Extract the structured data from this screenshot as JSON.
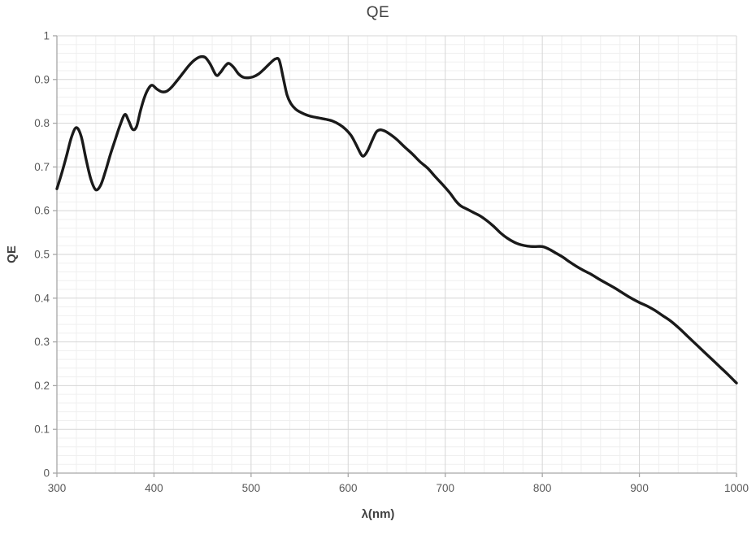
{
  "chart_data": {
    "type": "line",
    "title": "QE",
    "xlabel": "λ(nm)",
    "ylabel": "QE",
    "xlim": [
      300,
      1000
    ],
    "ylim": [
      0,
      1
    ],
    "x_major_step": 100,
    "x_minor_step": 20,
    "y_major_step": 0.1,
    "y_minor_step": 0.02,
    "grid": "major+minor",
    "legend_position": "none",
    "x_ticks": [
      {
        "value": 300,
        "label": "300"
      },
      {
        "value": 400,
        "label": "400"
      },
      {
        "value": 500,
        "label": "500"
      },
      {
        "value": 600,
        "label": "600"
      },
      {
        "value": 700,
        "label": "700"
      },
      {
        "value": 800,
        "label": "800"
      },
      {
        "value": 900,
        "label": "900"
      },
      {
        "value": 1000,
        "label": "1000"
      }
    ],
    "y_ticks": [
      {
        "value": 0,
        "label": "0"
      },
      {
        "value": 0.1,
        "label": "0.1"
      },
      {
        "value": 0.2,
        "label": "0.2"
      },
      {
        "value": 0.3,
        "label": "0.3"
      },
      {
        "value": 0.4,
        "label": "0.4"
      },
      {
        "value": 0.5,
        "label": "0.5"
      },
      {
        "value": 0.6,
        "label": "0.6"
      },
      {
        "value": 0.7,
        "label": "0.7"
      },
      {
        "value": 0.8,
        "label": "0.8"
      },
      {
        "value": 0.9,
        "label": "0.9"
      },
      {
        "value": 1,
        "label": "1"
      }
    ],
    "series": [
      {
        "name": "QE",
        "points": [
          [
            300,
            0.65
          ],
          [
            305,
            0.686
          ],
          [
            310,
            0.726
          ],
          [
            315,
            0.768
          ],
          [
            320,
            0.79
          ],
          [
            325,
            0.77
          ],
          [
            330,
            0.718
          ],
          [
            335,
            0.672
          ],
          [
            340,
            0.648
          ],
          [
            345,
            0.658
          ],
          [
            350,
            0.69
          ],
          [
            355,
            0.728
          ],
          [
            360,
            0.762
          ],
          [
            365,
            0.795
          ],
          [
            370,
            0.82
          ],
          [
            374,
            0.805
          ],
          [
            378,
            0.786
          ],
          [
            382,
            0.792
          ],
          [
            386,
            0.828
          ],
          [
            390,
            0.858
          ],
          [
            394,
            0.878
          ],
          [
            398,
            0.887
          ],
          [
            403,
            0.878
          ],
          [
            408,
            0.872
          ],
          [
            413,
            0.873
          ],
          [
            418,
            0.882
          ],
          [
            424,
            0.898
          ],
          [
            430,
            0.915
          ],
          [
            436,
            0.932
          ],
          [
            442,
            0.945
          ],
          [
            448,
            0.952
          ],
          [
            453,
            0.95
          ],
          [
            458,
            0.935
          ],
          [
            464,
            0.91
          ],
          [
            468,
            0.915
          ],
          [
            473,
            0.93
          ],
          [
            477,
            0.937
          ],
          [
            482,
            0.928
          ],
          [
            487,
            0.913
          ],
          [
            492,
            0.905
          ],
          [
            497,
            0.904
          ],
          [
            502,
            0.906
          ],
          [
            508,
            0.913
          ],
          [
            514,
            0.925
          ],
          [
            520,
            0.938
          ],
          [
            525,
            0.947
          ],
          [
            529,
            0.944
          ],
          [
            533,
            0.905
          ],
          [
            537,
            0.865
          ],
          [
            541,
            0.845
          ],
          [
            546,
            0.832
          ],
          [
            551,
            0.825
          ],
          [
            557,
            0.819
          ],
          [
            563,
            0.815
          ],
          [
            570,
            0.812
          ],
          [
            577,
            0.809
          ],
          [
            584,
            0.805
          ],
          [
            591,
            0.797
          ],
          [
            597,
            0.787
          ],
          [
            603,
            0.772
          ],
          [
            608,
            0.752
          ],
          [
            613,
            0.73
          ],
          [
            616,
            0.725
          ],
          [
            620,
            0.737
          ],
          [
            625,
            0.762
          ],
          [
            629,
            0.78
          ],
          [
            633,
            0.785
          ],
          [
            638,
            0.782
          ],
          [
            643,
            0.775
          ],
          [
            650,
            0.763
          ],
          [
            658,
            0.746
          ],
          [
            666,
            0.73
          ],
          [
            674,
            0.712
          ],
          [
            682,
            0.697
          ],
          [
            690,
            0.677
          ],
          [
            698,
            0.658
          ],
          [
            705,
            0.64
          ],
          [
            711,
            0.622
          ],
          [
            716,
            0.611
          ],
          [
            722,
            0.604
          ],
          [
            729,
            0.596
          ],
          [
            736,
            0.588
          ],
          [
            743,
            0.577
          ],
          [
            750,
            0.564
          ],
          [
            757,
            0.549
          ],
          [
            764,
            0.537
          ],
          [
            771,
            0.528
          ],
          [
            778,
            0.522
          ],
          [
            785,
            0.519
          ],
          [
            792,
            0.518
          ],
          [
            800,
            0.518
          ],
          [
            807,
            0.512
          ],
          [
            814,
            0.503
          ],
          [
            821,
            0.494
          ],
          [
            828,
            0.483
          ],
          [
            835,
            0.473
          ],
          [
            842,
            0.464
          ],
          [
            850,
            0.455
          ],
          [
            858,
            0.444
          ],
          [
            866,
            0.434
          ],
          [
            874,
            0.424
          ],
          [
            882,
            0.413
          ],
          [
            890,
            0.402
          ],
          [
            900,
            0.39
          ],
          [
            908,
            0.382
          ],
          [
            916,
            0.372
          ],
          [
            924,
            0.36
          ],
          [
            932,
            0.348
          ],
          [
            941,
            0.331
          ],
          [
            950,
            0.312
          ],
          [
            960,
            0.291
          ],
          [
            970,
            0.27
          ],
          [
            980,
            0.249
          ],
          [
            990,
            0.228
          ],
          [
            1000,
            0.206
          ]
        ]
      }
    ]
  },
  "colors": {
    "curve": "#1a1a1a",
    "major_grid": "#d6d6d6",
    "minor_grid": "#efefef",
    "axis": "#a6a6a6",
    "tick_text": "#595959",
    "title_text": "#404040",
    "background": "#ffffff"
  }
}
